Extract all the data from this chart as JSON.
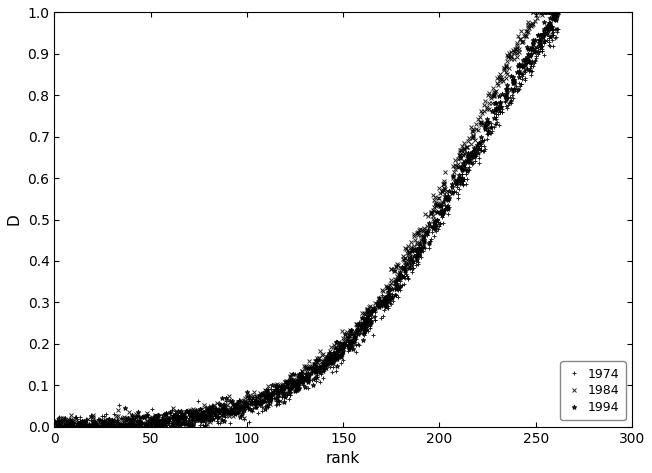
{
  "title": "",
  "xlabel": "rank",
  "ylabel": "D",
  "xlim": [
    0,
    300
  ],
  "ylim": [
    0,
    1.0
  ],
  "xticks": [
    0,
    50,
    100,
    150,
    200,
    250,
    300
  ],
  "yticks": [
    0,
    0.1,
    0.2,
    0.3,
    0.4,
    0.5,
    0.6,
    0.7,
    0.8,
    0.9,
    1.0
  ],
  "series": [
    {
      "label": "1974",
      "marker": "+",
      "color": "#000000",
      "markersize": 3.5,
      "zorder": 2
    },
    {
      "label": "1984",
      "marker": "x",
      "color": "#000000",
      "markersize": 3.5,
      "zorder": 3
    },
    {
      "label": "1994",
      "marker": "*",
      "color": "#000000",
      "markersize": 3.5,
      "zorder": 4
    }
  ],
  "legend_loc": "lower right",
  "background_color": "#ffffff",
  "x_max": 262,
  "n_points": 800,
  "noise_scale": 0.012
}
